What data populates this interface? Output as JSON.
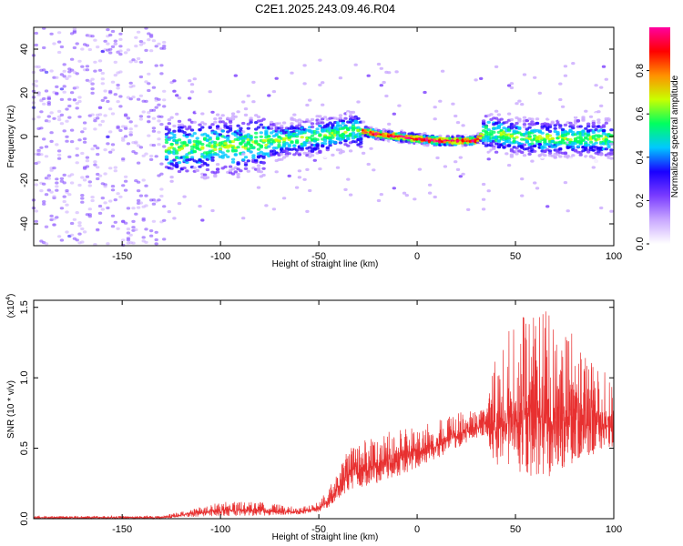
{
  "title": "C2E1.2025.243.09.46.R04",
  "chart_data": [
    {
      "type": "heatmap",
      "xlabel": "Height of straight line (km)",
      "ylabel": "Frequency (Hz)",
      "xlim": [
        -195,
        100
      ],
      "ylim": [
        -50,
        50
      ],
      "x_ticks": [
        -150,
        -100,
        -50,
        0,
        50,
        100
      ],
      "y_ticks": [
        -40,
        -20,
        0,
        20,
        40
      ],
      "colorbar": {
        "label": "Normalized spectral amplitude",
        "range": [
          0,
          1
        ],
        "ticks": [
          "0.0",
          "0.2",
          "0.4",
          "0.6",
          "0.8"
        ],
        "colors": [
          "#ffffff",
          "#c9a8ff",
          "#7a3cff",
          "#1a00ff",
          "#00c8ff",
          "#00ff60",
          "#c8ff00",
          "#ff9000",
          "#ff0000",
          "#ff00a0"
        ]
      },
      "ridge": {
        "x": [
          -130,
          -110,
          -90,
          -70,
          -50,
          -30,
          -20,
          -10,
          0,
          10,
          20,
          30,
          35,
          50,
          70,
          90,
          100
        ],
        "freq": [
          -5,
          -5,
          -4,
          -2,
          0,
          3,
          1,
          0,
          -1,
          -2,
          -2,
          -2,
          2,
          0,
          -1,
          -1,
          -1
        ]
      },
      "grid": false
    },
    {
      "type": "line",
      "xlabel": "Height of straight line (km)",
      "ylabel": "SNR (10 * v/v)",
      "y_multiplier": "(x10",
      "y_multiplier_exp": "4",
      "y_multiplier_close": ")",
      "xlim": [
        -195,
        100
      ],
      "ylim": [
        0,
        1.55
      ],
      "x_ticks": [
        -150,
        -100,
        -50,
        0,
        50,
        100
      ],
      "y_ticks": [
        "0.0",
        "0.5",
        "1.0",
        "1.5"
      ],
      "color": "#e83030",
      "envelope": {
        "x": [
          -195,
          -130,
          -120,
          -100,
          -80,
          -60,
          -50,
          -45,
          -35,
          -20,
          0,
          20,
          35,
          40,
          50,
          60,
          70,
          80,
          90,
          100
        ],
        "base": [
          0.0,
          0.0,
          0.01,
          0.02,
          0.02,
          0.03,
          0.05,
          0.08,
          0.2,
          0.25,
          0.35,
          0.5,
          0.6,
          0.35,
          0.3,
          0.3,
          0.3,
          0.4,
          0.45,
          0.5
        ],
        "top": [
          0.02,
          0.02,
          0.05,
          0.12,
          0.12,
          0.08,
          0.12,
          0.22,
          0.5,
          0.6,
          0.68,
          0.75,
          0.8,
          1.2,
          1.45,
          1.5,
          1.5,
          1.35,
          1.1,
          1.0
        ]
      },
      "grid": false
    }
  ]
}
